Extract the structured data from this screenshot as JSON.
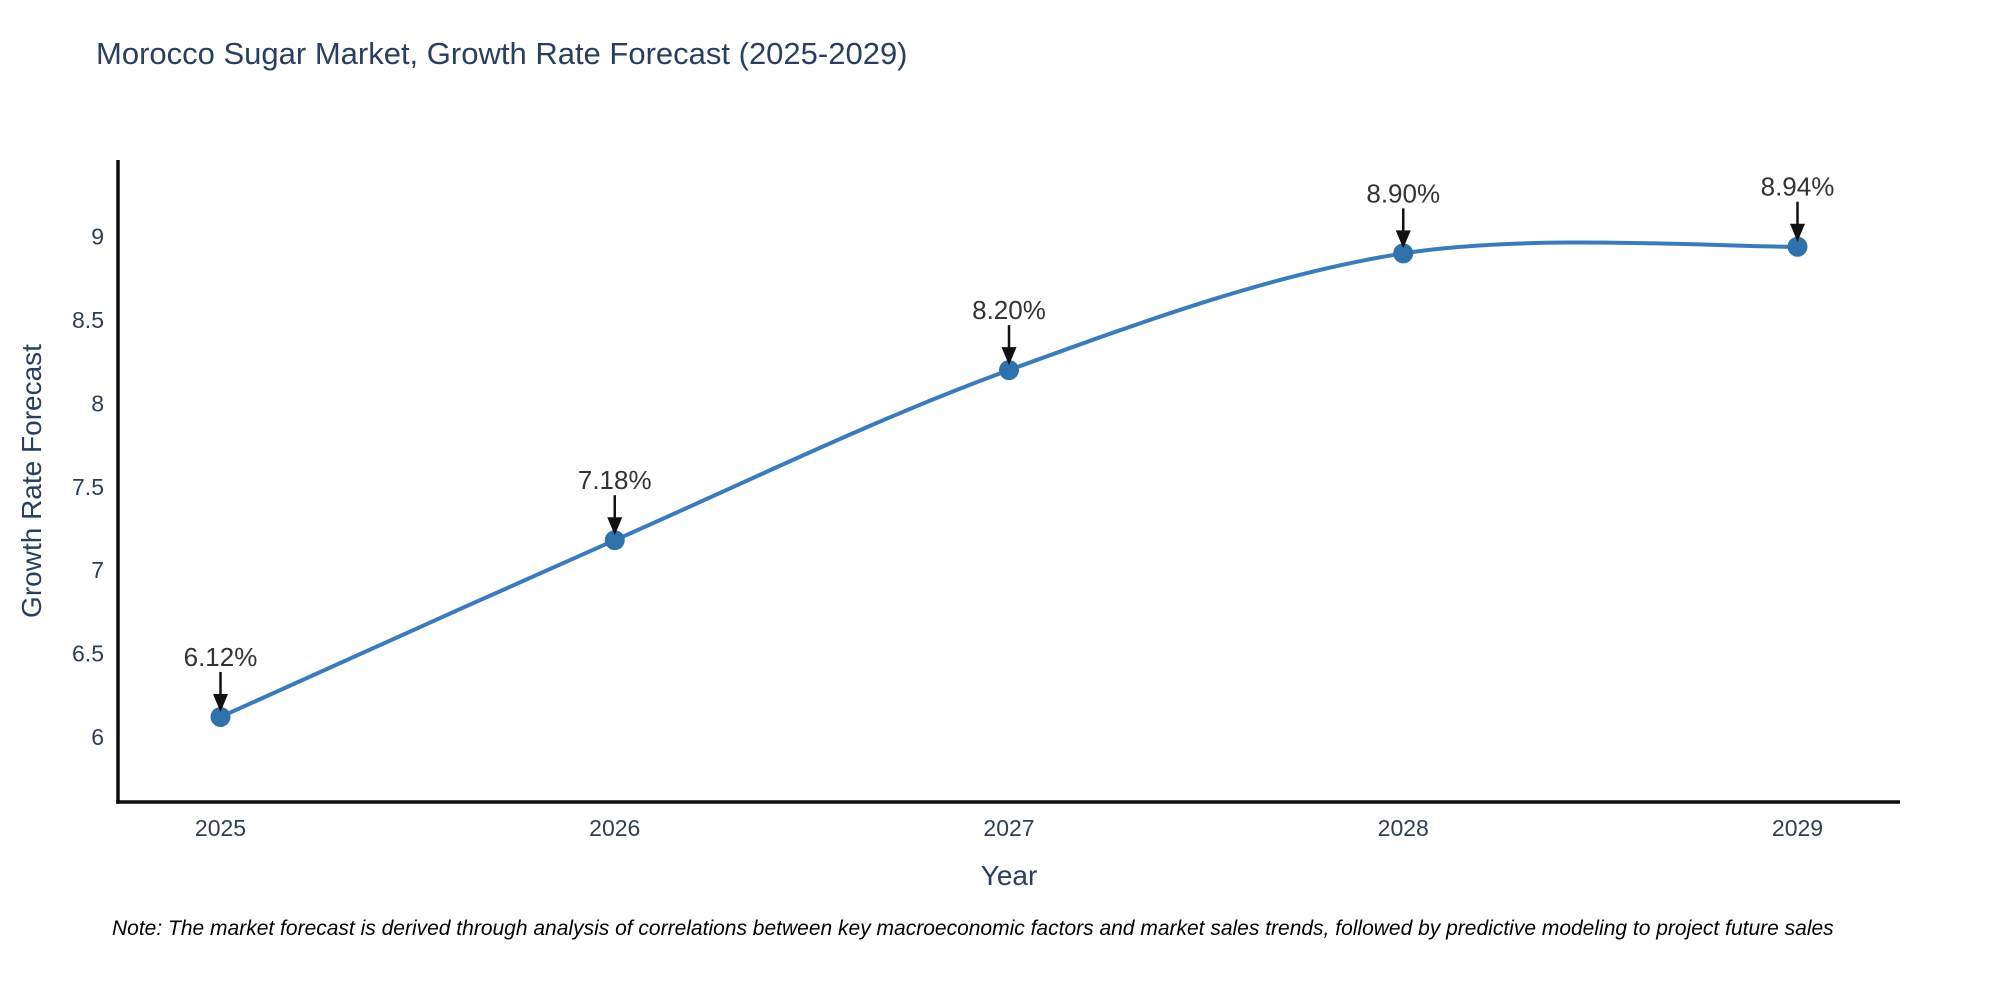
{
  "title": "Morocco Sugar Market, Growth Rate Forecast (2025-2029)",
  "note": {
    "text": "Note: The market forecast is derived through analysis of correlations between key macroeconomic factors and market sales trends, followed by predictive modeling to project future sales"
  },
  "chart_data": {
    "type": "line",
    "line_shape": "spline",
    "title": "Morocco Sugar Market, Growth Rate Forecast (2025-2029)",
    "xlabel": "Year",
    "ylabel": "Growth Rate Forecast",
    "x": [
      2025,
      2026,
      2027,
      2028,
      2029
    ],
    "values": [
      6.12,
      7.18,
      8.2,
      8.9,
      8.94
    ],
    "point_labels": [
      "6.12%",
      "7.18%",
      "8.20%",
      "8.90%",
      "8.94%"
    ],
    "xticks": [
      2025,
      2026,
      2027,
      2028,
      2029
    ],
    "yticks": [
      6,
      6.5,
      7,
      7.5,
      8,
      8.5,
      9
    ],
    "xlim": [
      2024.74,
      2029.26
    ],
    "ylim": [
      5.61,
      9.46
    ],
    "grid": false,
    "legend": "none",
    "colors": {
      "line": "#3a7cbb",
      "marker": "#2f72ab",
      "axis": "#0d0d0d",
      "tick_text": "#2f3f53",
      "annotation_text": "#333333",
      "arrow": "#111111",
      "background": "#ffffff"
    }
  }
}
